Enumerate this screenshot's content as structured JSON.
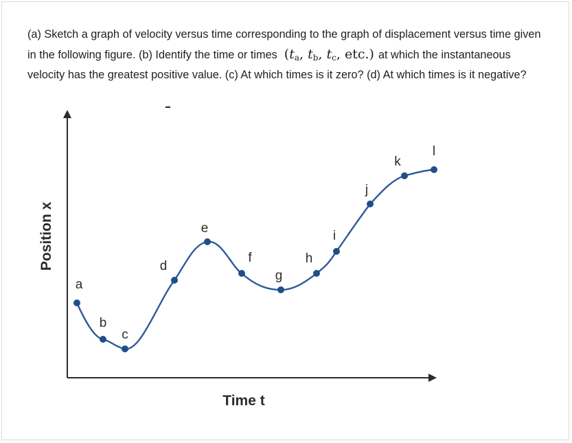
{
  "question": {
    "text_part1": "(a) Sketch a graph of velocity versus time corresponding to the graph of displacement versus time given in the following figure. (b) Identify the time or times",
    "math": {
      "open": "(",
      "t1_var": "t",
      "t1_sub": "a",
      "sep1": ", ",
      "t2_var": "t",
      "t2_sub": "b",
      "sep2": ", ",
      "t3_var": "t",
      "t3_sub": "c",
      "tail": ", etc.)"
    },
    "text_part2": "at which the instantaneous velocity has the greatest positive value. (c) At which times is it zero? (d) At which times is it negative?"
  },
  "figure": {
    "y_axis_label": "Position x",
    "x_axis_label": "Time t",
    "curve_color": "#2e5a96",
    "point_color": "#1f4f8a",
    "points": [
      {
        "label": "a"
      },
      {
        "label": "b"
      },
      {
        "label": "c"
      },
      {
        "label": "d"
      },
      {
        "label": "e"
      },
      {
        "label": "f"
      },
      {
        "label": "g"
      },
      {
        "label": "h"
      },
      {
        "label": "i"
      },
      {
        "label": "j"
      },
      {
        "label": "k"
      },
      {
        "label": "l"
      }
    ]
  }
}
